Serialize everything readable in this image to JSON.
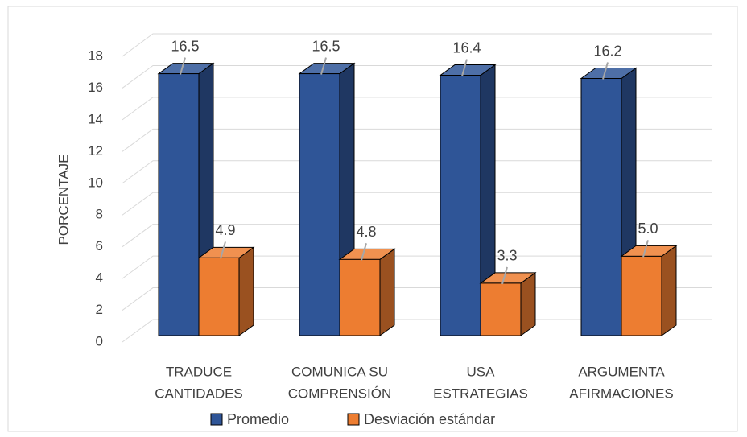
{
  "chart_data": {
    "type": "bar3d",
    "y_label": "PORCENTAJE",
    "categories": [
      [
        "TRADUCE",
        "CANTIDADES"
      ],
      [
        "COMUNICA SU",
        "COMPRENSIÓN"
      ],
      [
        "USA",
        "ESTRATEGIAS"
      ],
      [
        "ARGUMENTA",
        "AFIRMACIONES"
      ]
    ],
    "series": [
      {
        "name": "Promedio",
        "color": "#2F5597",
        "values": [
          16.5,
          16.5,
          16.4,
          16.2
        ],
        "value_labels": [
          "16.5",
          "16.5",
          "16.4",
          "16.2"
        ]
      },
      {
        "name": "Desviación estándar",
        "color": "#ED7D31",
        "values": [
          4.9,
          4.8,
          3.3,
          5.0
        ],
        "value_labels": [
          "4.9",
          "4.8",
          "3.3",
          "5.0"
        ]
      }
    ],
    "ylim": [
      0,
      18
    ],
    "yticks": [
      0,
      2,
      4,
      6,
      8,
      10,
      12,
      14,
      16,
      18
    ],
    "grid": true
  }
}
